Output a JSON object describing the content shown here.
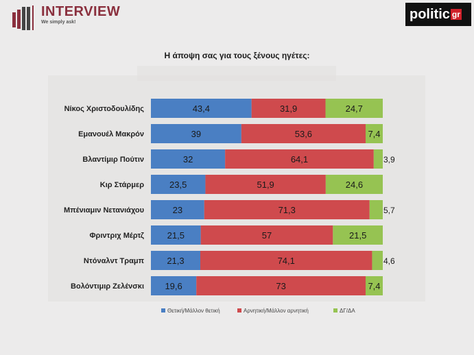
{
  "header": {
    "brand": "INTERVIEW",
    "tagline": "We simply ask!",
    "partner_main": "politic",
    "partner_suffix": "gr"
  },
  "colors": {
    "positive": "#4a7fc3",
    "negative": "#cf4a4d",
    "dk": "#96c352"
  },
  "chart_data": {
    "type": "bar",
    "orientation": "horizontal",
    "stacked": true,
    "title": "Η άποψη σας για τους ξένους ηγέτες:",
    "categories": [
      "Νίκος Χριστοδουλίδης",
      "Εμανουέλ Μακρόν",
      "Βλαντίμιρ Πούτιν",
      "Κιρ Στάρμερ",
      "Μπένιαμιν Νετανιάχου",
      "Φριντριχ Μέρτζ",
      "Ντόναλντ Τραμπ",
      "Βολόντιμιρ Ζελένσκι"
    ],
    "series": [
      {
        "name": "Θετική/Μάλλον θετική",
        "values": [
          43.4,
          39,
          32,
          23.5,
          23,
          21.5,
          21.3,
          19.6
        ],
        "labels": [
          "43,4",
          "39",
          "32",
          "23,5",
          "23",
          "21,5",
          "21,3",
          "19,6"
        ]
      },
      {
        "name": "Αρνητική/Μάλλον αρνητική",
        "values": [
          31.9,
          53.6,
          64.1,
          51.9,
          71.3,
          57,
          74.1,
          73
        ],
        "labels": [
          "31,9",
          "53,6",
          "64,1",
          "51,9",
          "71,3",
          "57",
          "74,1",
          "73"
        ]
      },
      {
        "name": "ΔΓ/ΔΑ",
        "values": [
          24.7,
          7.4,
          3.9,
          24.6,
          5.7,
          21.5,
          4.6,
          7.4
        ],
        "labels": [
          "24,7",
          "7,4",
          "3,9",
          "24,6",
          "5,7",
          "21,5",
          "4,6",
          "7,4"
        ]
      }
    ],
    "xlim": [
      0,
      100
    ],
    "legend": "bottom",
    "grid": false
  }
}
